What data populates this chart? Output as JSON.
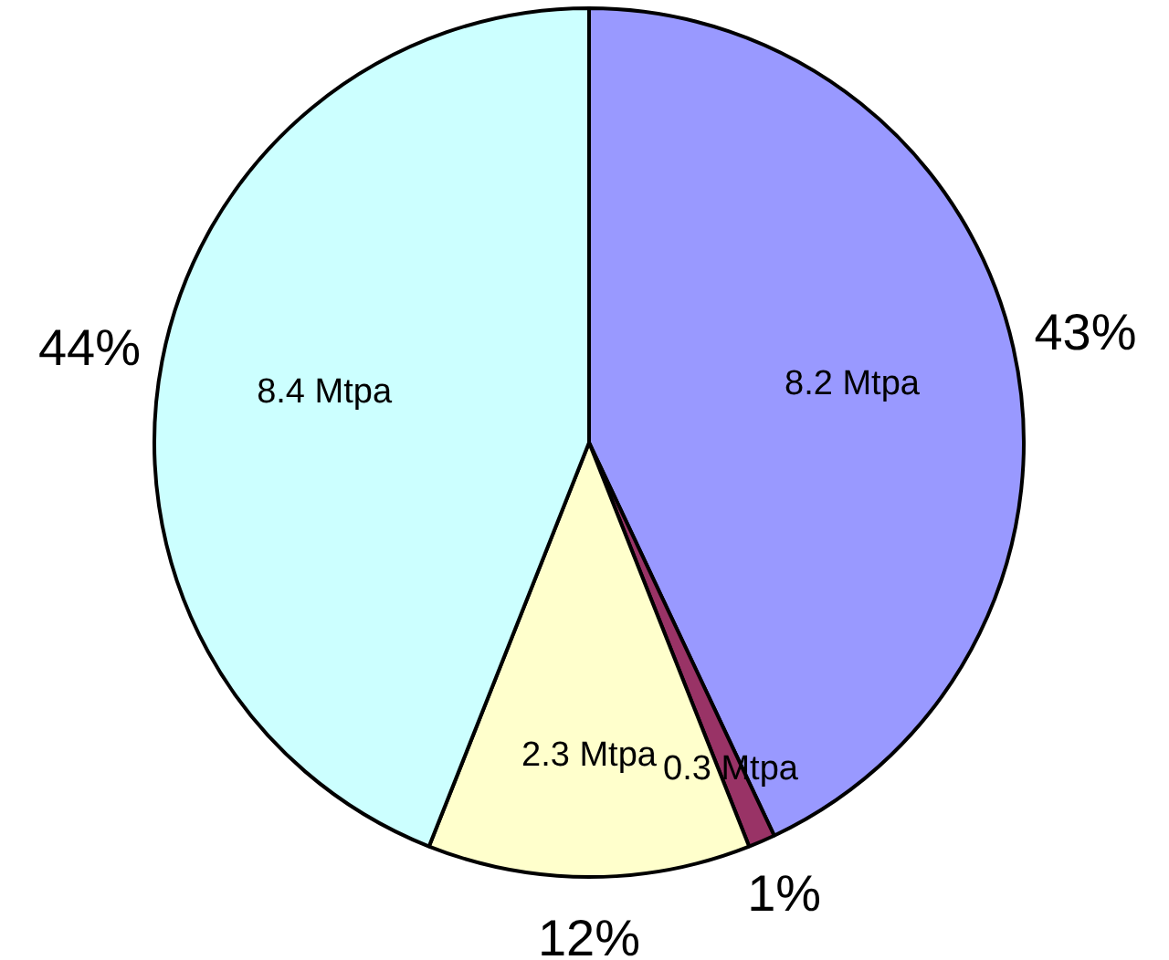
{
  "chart_data": {
    "type": "pie",
    "categories": [
      null,
      null,
      null,
      null
    ],
    "values": [
      43,
      1,
      12,
      44
    ],
    "colors": [
      "#9999ff",
      "#993366",
      "#ffffcc",
      "#ccffff"
    ],
    "value_labels": [
      "43%",
      "1%",
      "12%",
      "44%"
    ],
    "annotations": [
      "8.2 Mtpa",
      "0.3 Mtpa",
      "2.3 Mtpa",
      "8.4 Mtpa"
    ]
  }
}
